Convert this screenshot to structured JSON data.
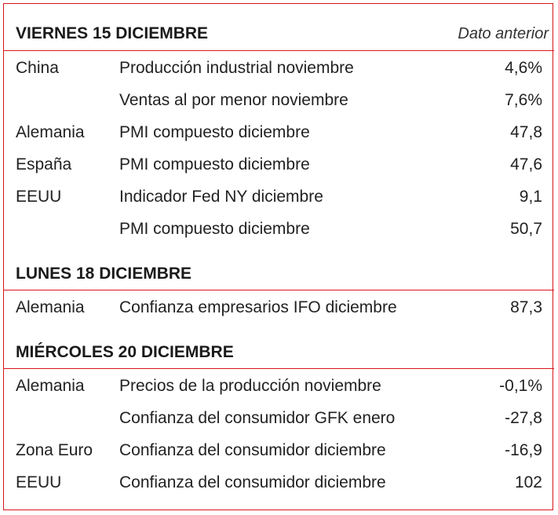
{
  "header": {
    "previous_label": "Dato anterior"
  },
  "sections": [
    {
      "title": "VIERNES 15 DICIEMBRE",
      "rows": [
        {
          "country": "China",
          "indicator": "Producción industrial noviembre",
          "value": "4,6%"
        },
        {
          "country": "",
          "indicator": "Ventas al por menor noviembre",
          "value": "7,6%"
        },
        {
          "country": "Alemania",
          "indicator": "PMI compuesto diciembre",
          "value": "47,8"
        },
        {
          "country": "España",
          "indicator": "PMI compuesto diciembre",
          "value": "47,6"
        },
        {
          "country": "EEUU",
          "indicator": "Indicador Fed NY diciembre",
          "value": "9,1"
        },
        {
          "country": "",
          "indicator": "PMI compuesto diciembre",
          "value": "50,7"
        }
      ]
    },
    {
      "title": "LUNES 18 DICIEMBRE",
      "rows": [
        {
          "country": "Alemania",
          "indicator": "Confianza empresarios IFO diciembre",
          "value": "87,3"
        }
      ]
    },
    {
      "title": "MIÉRCOLES 20 DICIEMBRE",
      "rows": [
        {
          "country": "Alemania",
          "indicator": "Precios de la producción noviembre",
          "value": "-0,1%"
        },
        {
          "country": "",
          "indicator": "Confianza del consumidor GFK enero",
          "value": "-27,8"
        },
        {
          "country": "Zona Euro",
          "indicator": "Confianza del consumidor diciembre",
          "value": "-16,9"
        },
        {
          "country": "EEUU",
          "indicator": "Confianza del consumidor diciembre",
          "value": "102"
        }
      ]
    }
  ],
  "colors": {
    "border": "#d9161c",
    "text": "#222222"
  }
}
